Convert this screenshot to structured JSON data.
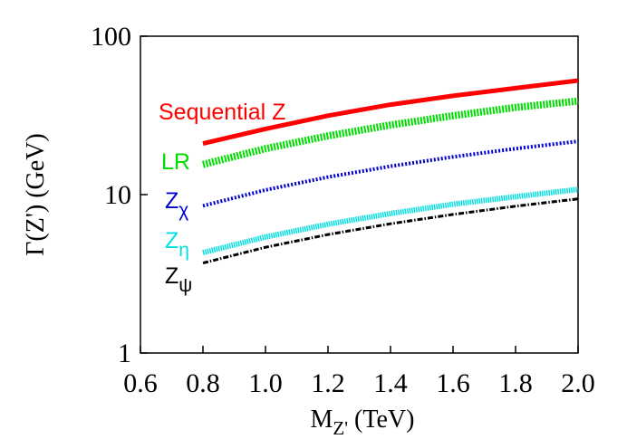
{
  "chart_data": {
    "type": "line",
    "x_label": "MZ' (TeV)",
    "y_label": "Γ(Z') (GeV)",
    "x": [
      0.8,
      1.0,
      1.2,
      1.4,
      1.6,
      1.8,
      2.0
    ],
    "series": [
      {
        "name": "Sequential Z",
        "color": "#ff0000",
        "values": [
          21,
          26,
          31.5,
          37,
          42,
          47,
          52.5
        ]
      },
      {
        "name": "LR",
        "color": "#00dd00",
        "values": [
          15.5,
          19.5,
          23.5,
          27.5,
          31.5,
          35.5,
          39
        ]
      },
      {
        "name": "Zχ",
        "color": "#0000cc",
        "values": [
          8.5,
          10.7,
          12.9,
          15.1,
          17.3,
          19.5,
          21.7
        ]
      },
      {
        "name": "Zη",
        "color": "#00e0e0",
        "values": [
          4.3,
          5.4,
          6.5,
          7.6,
          8.7,
          9.7,
          10.8
        ]
      },
      {
        "name": "Zψ",
        "color": "#000000",
        "values": [
          3.7,
          4.65,
          5.6,
          6.55,
          7.5,
          8.45,
          9.4
        ]
      }
    ],
    "xlim": [
      0.6,
      2.0
    ],
    "xticks": [
      0.6,
      0.8,
      {
        "value": 1.0,
        "label": "1.0"
      },
      1.2,
      1.4,
      1.6,
      1.8,
      {
        "value": 2.0,
        "label": "2.0"
      }
    ],
    "ylim": [
      1,
      100
    ],
    "yticks": [
      1,
      10,
      100
    ],
    "log_y": true
  }
}
